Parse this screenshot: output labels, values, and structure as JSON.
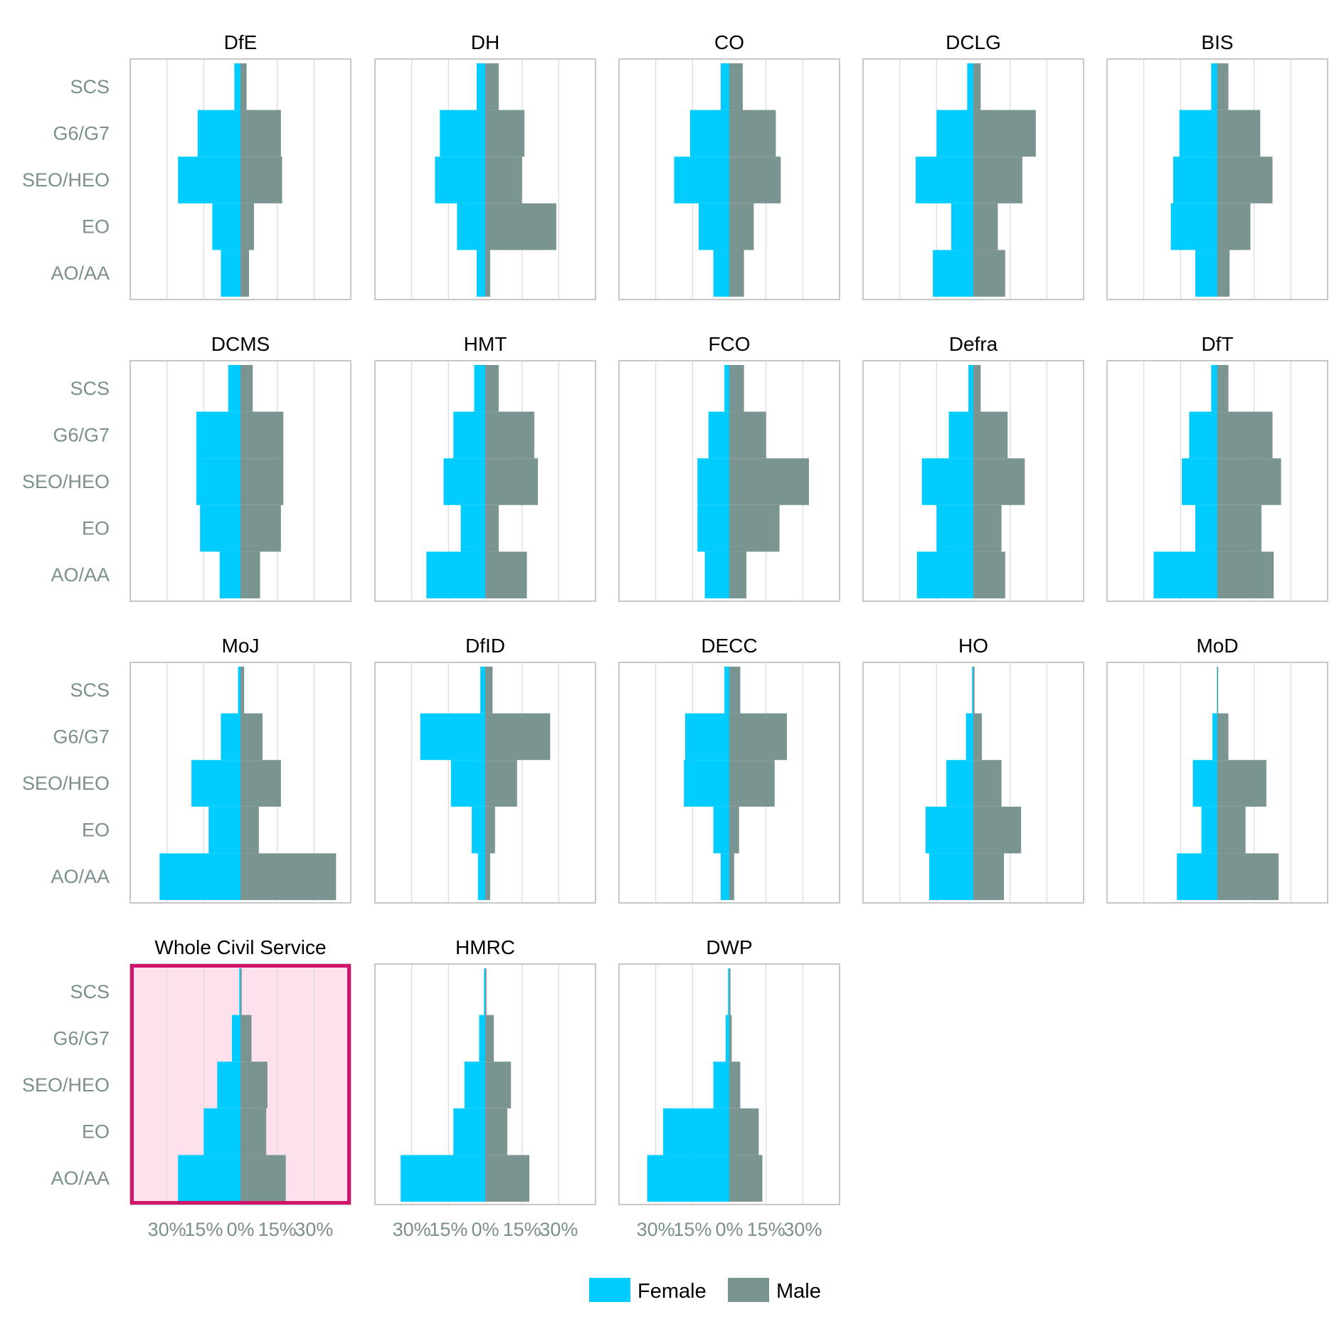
{
  "chart_data": {
    "type": "population-pyramid",
    "grades": [
      "SCS",
      "G6/G7",
      "SEO/HEO",
      "EO",
      "AO/AA"
    ],
    "x_tick_labels": [
      "30%",
      "15%",
      "0%",
      "15%",
      "30%"
    ],
    "xlim": [
      -45,
      45
    ],
    "grid": true,
    "highlighted_panel": "Whole Civil Service",
    "legend": {
      "placement": "bottom-center",
      "entries": [
        {
          "name": "Female",
          "color": "#00ccff"
        },
        {
          "name": "Male",
          "color": "#7a9491"
        }
      ]
    },
    "colors": {
      "female": "#00ccff",
      "male": "#7a9491",
      "highlight_border": "#d0146b",
      "highlight_fill": "#fde2ee",
      "grid": "#d9d9d9",
      "frame": "#c8c8c8"
    },
    "panels": [
      {
        "title": "DfE",
        "female": [
          2.5,
          17.5,
          25.5,
          11.5,
          8
        ],
        "male": [
          2.5,
          16.5,
          17,
          5.5,
          3.5
        ]
      },
      {
        "title": "DH",
        "female": [
          3.5,
          18.5,
          20.5,
          11.5,
          3.5
        ],
        "male": [
          5.5,
          16,
          15,
          29,
          2
        ]
      },
      {
        "title": "CO",
        "female": [
          3.5,
          16,
          22.5,
          12.5,
          6.5
        ],
        "male": [
          5.5,
          19,
          21,
          10,
          6
        ]
      },
      {
        "title": "DCLG",
        "female": [
          2.5,
          15,
          23.5,
          9,
          16.5
        ],
        "male": [
          3,
          25.5,
          20,
          10,
          13
        ]
      },
      {
        "title": "BIS",
        "female": [
          2.5,
          15.5,
          18,
          19,
          9
        ],
        "male": [
          4.5,
          17.5,
          22.5,
          13.5,
          5
        ]
      },
      {
        "title": "DCMS",
        "female": [
          5,
          18,
          18,
          16.5,
          8.5
        ],
        "male": [
          5,
          17.5,
          17.5,
          16.5,
          8
        ]
      },
      {
        "title": "HMT",
        "female": [
          4.5,
          13,
          17,
          10,
          24
        ],
        "male": [
          5.5,
          20,
          21.5,
          5.5,
          17
        ]
      },
      {
        "title": "FCO",
        "female": [
          2,
          8.5,
          13,
          13,
          10
        ],
        "male": [
          6,
          15,
          32.5,
          20.5,
          7
        ]
      },
      {
        "title": "Defra",
        "female": [
          2,
          10,
          21,
          15,
          23
        ],
        "male": [
          3,
          14,
          21,
          11.5,
          13
        ]
      },
      {
        "title": "DfT",
        "female": [
          2.5,
          11.5,
          14.5,
          9,
          26
        ],
        "male": [
          4.5,
          22.5,
          26,
          18,
          23
        ]
      },
      {
        "title": "MoJ",
        "female": [
          1,
          8,
          20,
          13,
          33
        ],
        "male": [
          1.5,
          9,
          16.5,
          7.5,
          39
        ]
      },
      {
        "title": "DfID",
        "female": [
          2,
          26.5,
          14,
          5.5,
          3
        ],
        "male": [
          3,
          26.5,
          13,
          4,
          2
        ]
      },
      {
        "title": "DECC",
        "female": [
          2,
          18,
          18.5,
          6.5,
          3.5
        ],
        "male": [
          4.5,
          23.5,
          18.5,
          4,
          2
        ]
      },
      {
        "title": "HO",
        "female": [
          0.5,
          3,
          11,
          19.5,
          18
        ],
        "male": [
          0.5,
          3.5,
          11.5,
          19.5,
          12.5
        ]
      },
      {
        "title": "MoD",
        "female": [
          0.2,
          2,
          10,
          6.5,
          16.5
        ],
        "male": [
          0.2,
          4.5,
          20,
          11.5,
          25
        ]
      },
      {
        "title": "Whole Civil Service",
        "female": [
          0.5,
          3.5,
          9.5,
          15,
          25.5
        ],
        "male": [
          0.5,
          4.5,
          11,
          10.5,
          18.5
        ]
      },
      {
        "title": "HMRC",
        "female": [
          0.5,
          2.5,
          8.5,
          13,
          34.5
        ],
        "male": [
          0.5,
          3.5,
          10.5,
          9,
          18
        ]
      },
      {
        "title": "DWP",
        "female": [
          0.5,
          1.5,
          6.5,
          27,
          33.5
        ],
        "male": [
          0.5,
          1,
          4.5,
          12,
          13.5
        ]
      }
    ]
  }
}
